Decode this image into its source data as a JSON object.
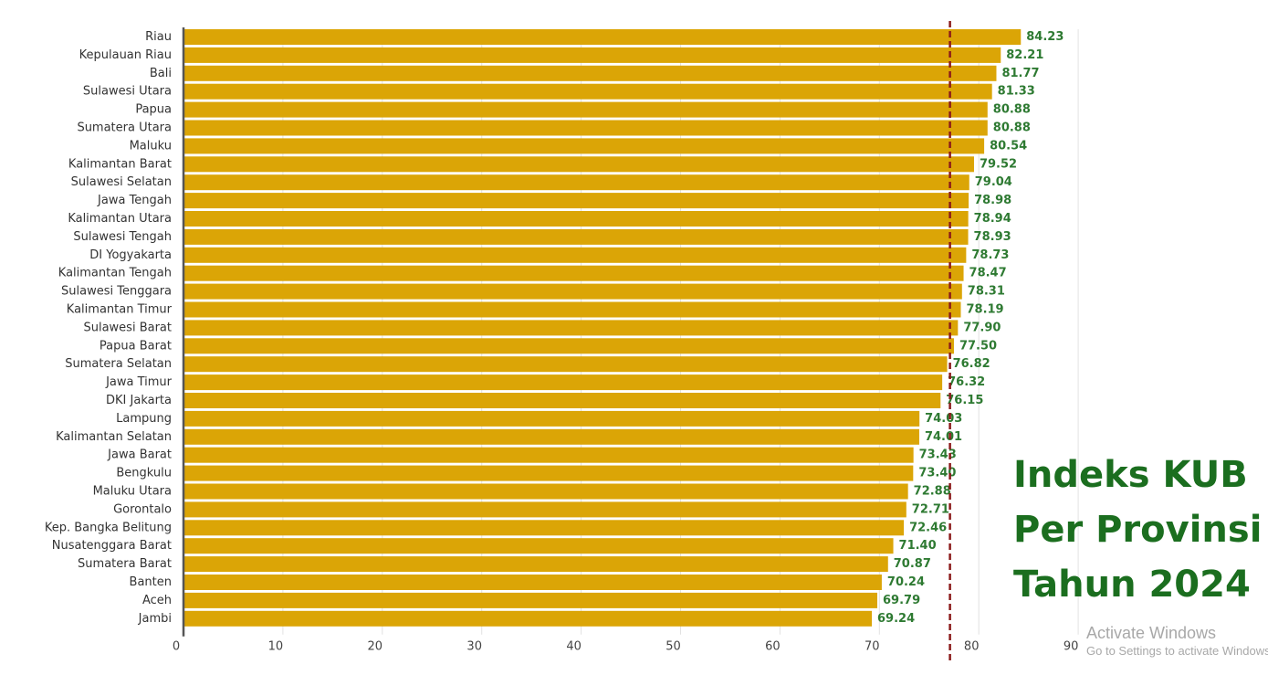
{
  "title": {
    "line1": "Indeks KUB",
    "line2": "Per Provinsi",
    "line3": "Tahun 2024"
  },
  "watermark": {
    "title": "Activate Windows",
    "subtitle": "Go to Settings to activate Windows."
  },
  "colors": {
    "bar": "#dba506",
    "value_text": "#2e7a32",
    "title_text": "#1b6e1f",
    "reference_line": "#8b1a1a",
    "axis": "#555555",
    "grid": "#e2e2e2"
  },
  "chart_data": {
    "type": "bar",
    "orientation": "horizontal",
    "categories": [
      "Riau",
      "Kepulauan Riau",
      "Bali",
      "Sulawesi Utara",
      "Papua",
      "Sumatera Utara",
      "Maluku",
      "Kalimantan Barat",
      "Sulawesi Selatan",
      "Jawa Tengah",
      "Kalimantan Utara",
      "Sulawesi Tengah",
      "DI Yogyakarta",
      "Kalimantan Tengah",
      "Sulawesi Tenggara",
      "Kalimantan Timur",
      "Sulawesi Barat",
      "Papua Barat",
      "Sumatera Selatan",
      "Jawa Timur",
      "DKI Jakarta",
      "Lampung",
      "Kalimantan Selatan",
      "Jawa Barat",
      "Bengkulu",
      "Maluku Utara",
      "Gorontalo",
      "Kep. Bangka Belitung",
      "Nusatenggara Barat",
      "Sumatera Barat",
      "Banten",
      "Aceh",
      "Jambi"
    ],
    "values": [
      84.23,
      82.21,
      81.77,
      81.33,
      80.88,
      80.88,
      80.54,
      79.52,
      79.04,
      78.98,
      78.94,
      78.93,
      78.73,
      78.47,
      78.31,
      78.19,
      77.9,
      77.5,
      76.82,
      76.32,
      76.15,
      74.03,
      74.01,
      73.43,
      73.4,
      72.88,
      72.71,
      72.46,
      71.4,
      70.87,
      70.24,
      69.79,
      69.24
    ],
    "value_labels": [
      "84.23",
      "82.21",
      "81.77",
      "81.33",
      "80.88",
      "80.88",
      "80.54",
      "79.52",
      "79.04",
      "78.98",
      "78.94",
      "78.93",
      "78.73",
      "78.47",
      "78.31",
      "78.19",
      "77.90",
      "77.50",
      "76.82",
      "76.32",
      "76.15",
      "74.03",
      "74.01",
      "73.43",
      "73.40",
      "72.88",
      "72.71",
      "72.46",
      "71.40",
      "70.87",
      "70.24",
      "69.79",
      "69.24"
    ],
    "xlim": [
      0,
      90
    ],
    "x_ticks": [
      0,
      10,
      20,
      30,
      40,
      50,
      60,
      70,
      80,
      90
    ],
    "x_tick_labels": [
      "0",
      "10",
      "20",
      "30",
      "40",
      "50",
      "60",
      "70",
      "80",
      "90"
    ],
    "reference_line": 77.1,
    "grid": true,
    "legend": "none"
  }
}
